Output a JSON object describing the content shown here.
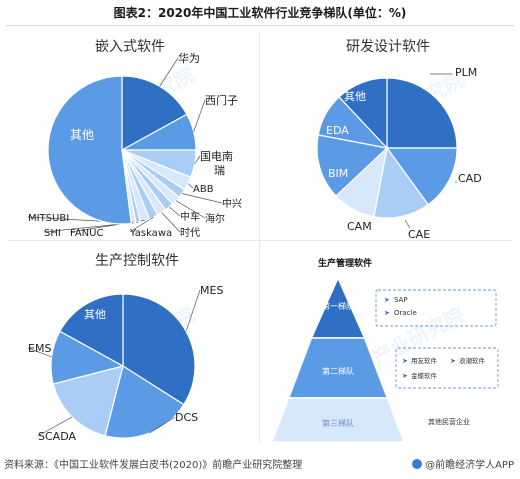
{
  "title": "图表2：2020年中国工业软件行业竞争梯队(单位：%)",
  "source": "资料来源：《中国工业软件发展白皮书(2020)》前瞻产业研究院整理",
  "brand": "@前瞻经济学人APP",
  "watermark": "前瞻产业研究院",
  "colors": {
    "dark": "#2f6fc4",
    "mid": "#5b9be6",
    "light": "#a9cdf4",
    "pale": "#d7e8fb"
  },
  "chart_data": [
    {
      "type": "pie",
      "title": "嵌入式软件",
      "labels": [
        "华为",
        "西门子",
        "国电南瑞",
        "ABB",
        "中兴",
        "海尔",
        "中车",
        "时代",
        "Yaskawa",
        "FANUC",
        "SHI",
        "MITSUBI",
        "其他"
      ],
      "values": [
        17,
        8,
        6,
        3,
        2,
        2,
        2,
        2,
        2,
        2,
        1,
        1,
        52
      ]
    },
    {
      "type": "pie",
      "title": "研发设计软件",
      "labels": [
        "PLM",
        "CAD",
        "CAE",
        "CAM",
        "BIM",
        "EDA",
        "其他"
      ],
      "values": [
        25,
        15,
        13,
        10,
        15,
        10,
        12
      ]
    },
    {
      "type": "pie",
      "title": "生产控制软件",
      "labels": [
        "MES",
        "DCS",
        "SCADA",
        "EMS",
        "其他"
      ],
      "values": [
        34,
        20,
        17,
        12,
        17
      ]
    },
    {
      "type": "pyramid",
      "title": "生产管理软件",
      "tiers": [
        {
          "name": "第一梯队",
          "items": [
            "SAP",
            "Oracle"
          ]
        },
        {
          "name": "第二梯队",
          "items": [
            "用友软件",
            "浪潮软件",
            "金蝶软件"
          ]
        },
        {
          "name": "第三梯队",
          "items": [
            "其他民营企业"
          ]
        }
      ]
    }
  ]
}
